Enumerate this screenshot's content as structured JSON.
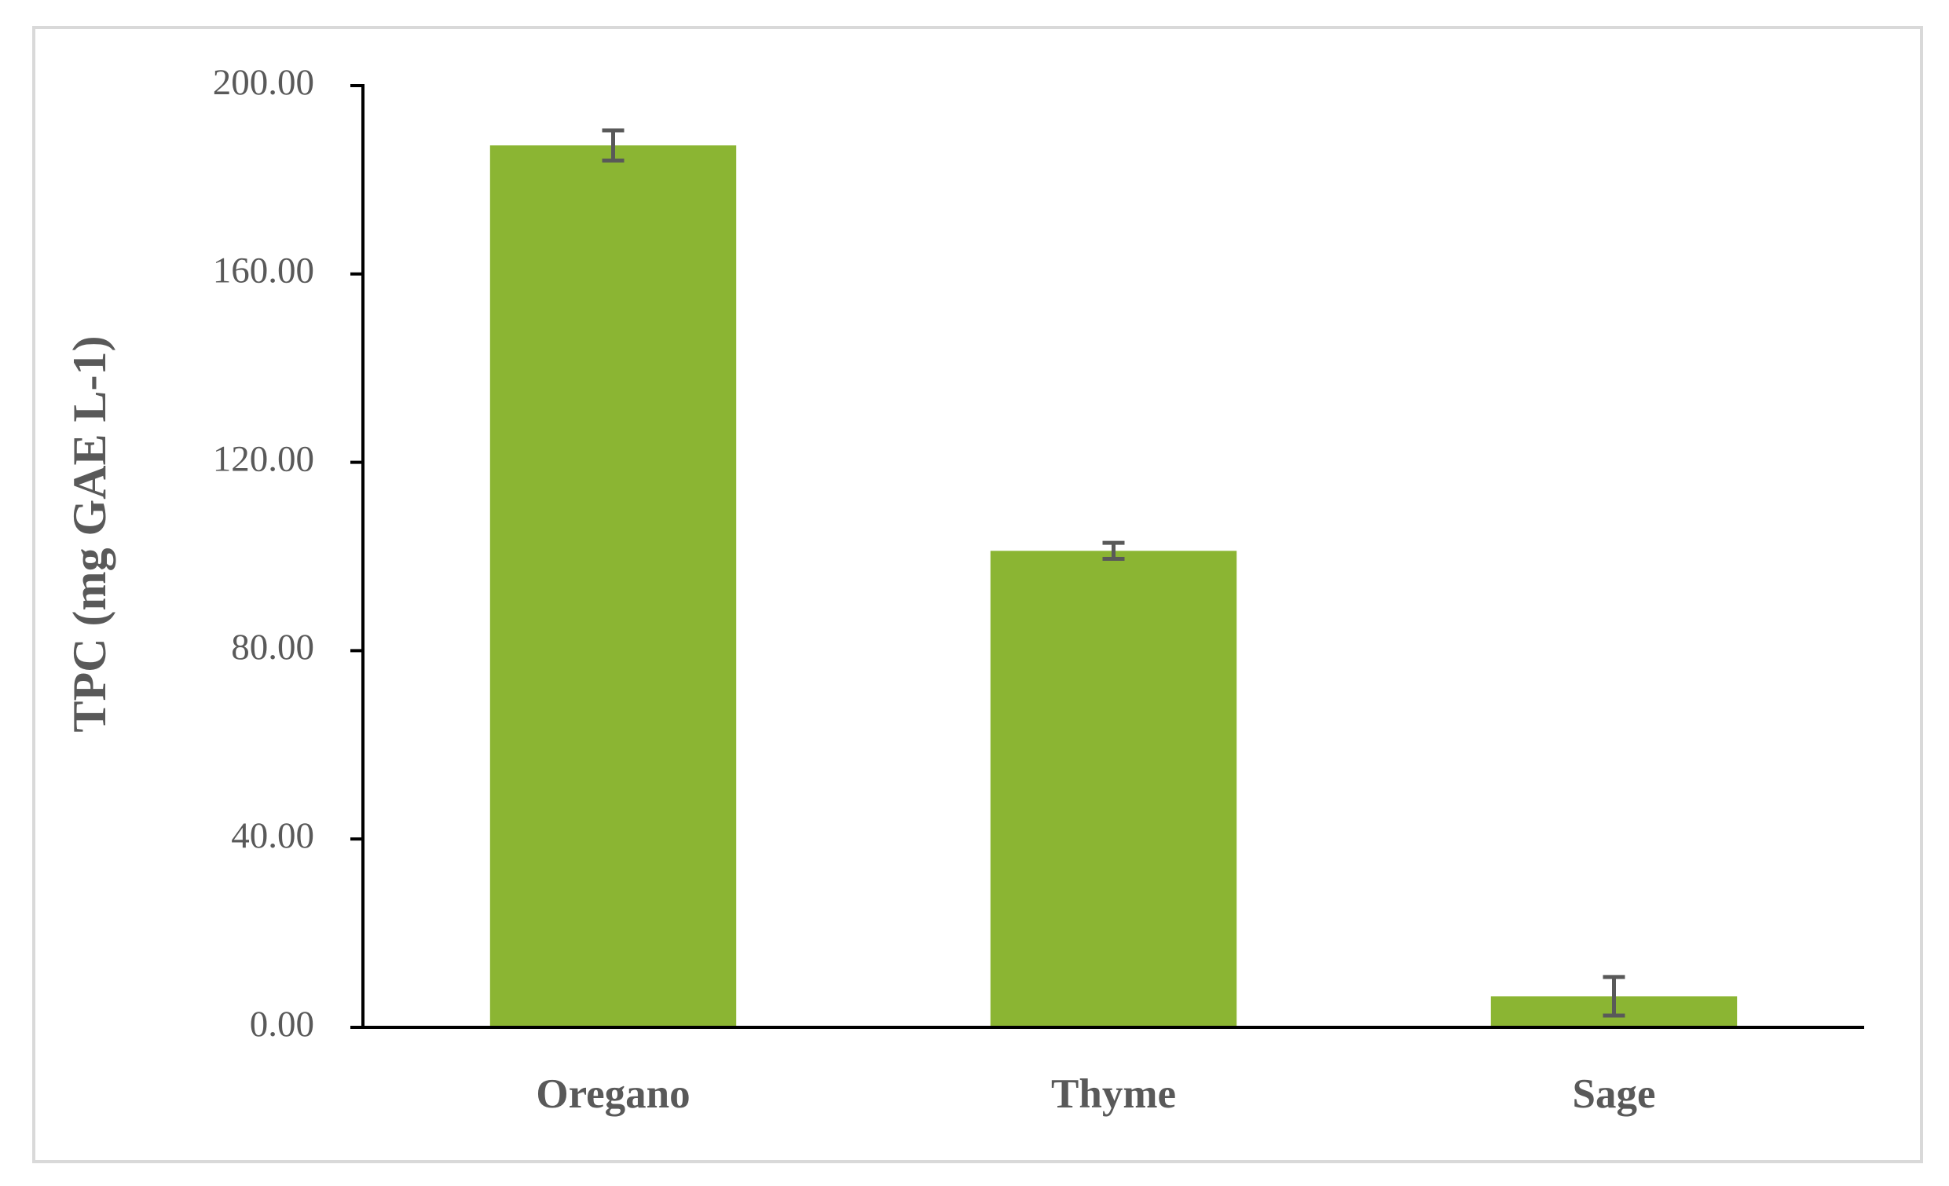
{
  "chart_data": {
    "type": "bar",
    "y_label": "TPC (mg GAE L-1)",
    "categories": [
      "Oregano",
      "Thyme",
      "Sage"
    ],
    "values": [
      187.3,
      101.2,
      6.6
    ],
    "errors": [
      3.2,
      1.7,
      4.1
    ],
    "color": "#8bb533",
    "ylim": [
      0,
      200
    ],
    "yticks": [
      {
        "value": 0,
        "label": "0.00"
      },
      {
        "value": 40,
        "label": "40.00"
      },
      {
        "value": 80,
        "label": "80.00"
      },
      {
        "value": 120,
        "label": "120.00"
      },
      {
        "value": 160,
        "label": "160.00"
      },
      {
        "value": 200,
        "label": "200.00"
      }
    ],
    "grid": false
  }
}
